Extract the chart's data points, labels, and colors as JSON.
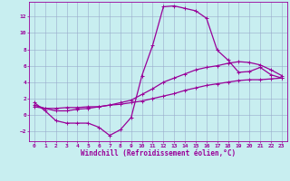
{
  "xlabel": "Windchill (Refroidissement éolien,°C)",
  "bg_color": "#c8eef0",
  "grid_color": "#99aacc",
  "line_color": "#990099",
  "xlim": [
    -0.5,
    23.5
  ],
  "ylim": [
    -3.2,
    13.8
  ],
  "xticks": [
    0,
    1,
    2,
    3,
    4,
    5,
    6,
    7,
    8,
    9,
    10,
    11,
    12,
    13,
    14,
    15,
    16,
    17,
    18,
    19,
    20,
    21,
    22,
    23
  ],
  "yticks": [
    -2,
    0,
    2,
    4,
    6,
    8,
    10,
    12
  ],
  "line1_x": [
    0,
    1,
    2,
    3,
    4,
    5,
    6,
    7,
    8,
    9,
    10,
    11,
    12,
    13,
    14,
    15,
    16,
    17,
    18,
    19,
    20,
    21,
    22,
    23
  ],
  "line1_y": [
    1.5,
    0.5,
    -0.7,
    -1.0,
    -1.0,
    -1.0,
    -1.5,
    -2.5,
    -1.8,
    -0.3,
    4.8,
    8.5,
    13.2,
    13.3,
    13.0,
    12.7,
    11.8,
    7.9,
    6.7,
    5.2,
    5.3,
    5.8,
    4.9,
    4.5
  ],
  "line2_x": [
    0,
    1,
    2,
    3,
    4,
    5,
    6,
    7,
    8,
    9,
    10,
    11,
    12,
    13,
    14,
    15,
    16,
    17,
    18,
    19,
    20,
    21,
    22,
    23
  ],
  "line2_y": [
    1.2,
    0.8,
    0.5,
    0.5,
    0.7,
    0.8,
    1.0,
    1.2,
    1.5,
    1.8,
    2.5,
    3.2,
    4.0,
    4.5,
    5.0,
    5.5,
    5.8,
    6.0,
    6.3,
    6.5,
    6.4,
    6.1,
    5.5,
    4.8
  ],
  "line3_x": [
    0,
    1,
    2,
    3,
    4,
    5,
    6,
    7,
    8,
    9,
    10,
    11,
    12,
    13,
    14,
    15,
    16,
    17,
    18,
    19,
    20,
    21,
    22,
    23
  ],
  "line3_y": [
    1.0,
    0.8,
    0.8,
    0.9,
    0.9,
    1.0,
    1.0,
    1.2,
    1.3,
    1.5,
    1.7,
    2.0,
    2.3,
    2.6,
    3.0,
    3.3,
    3.6,
    3.8,
    4.0,
    4.2,
    4.3,
    4.3,
    4.4,
    4.5
  ]
}
